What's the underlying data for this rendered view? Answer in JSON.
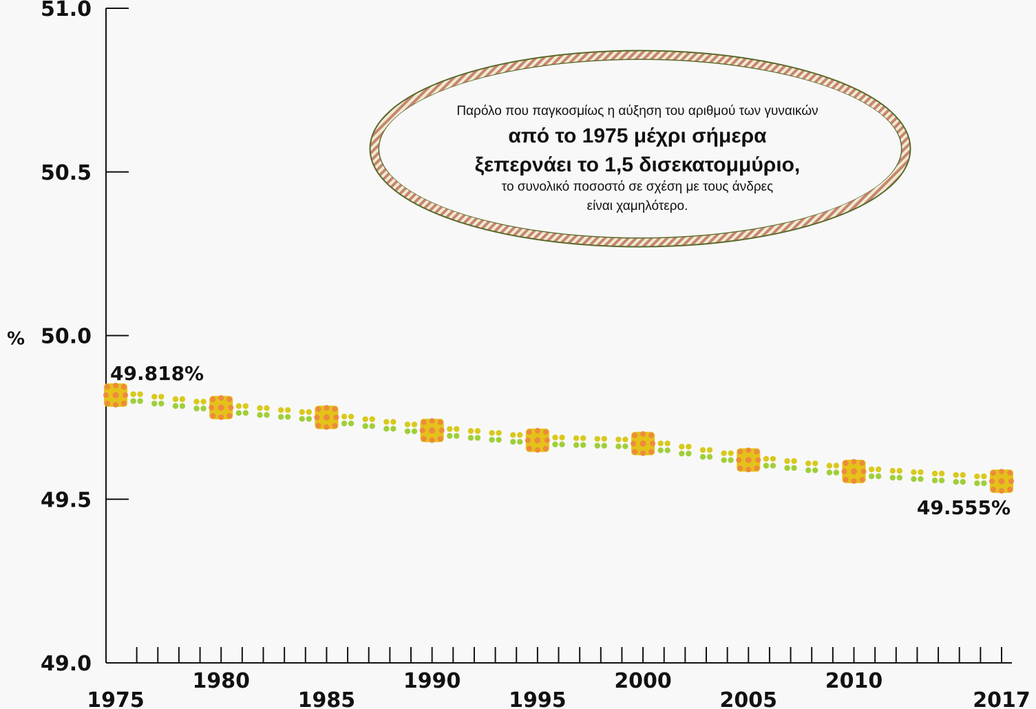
{
  "chart_data": {
    "type": "line",
    "title": "",
    "xlabel": "",
    "ylabel": "%",
    "x": [
      1975,
      1980,
      1985,
      1990,
      1995,
      2000,
      2005,
      2010,
      2017
    ],
    "series": [
      {
        "values": [
          49.818,
          49.78,
          49.75,
          49.71,
          49.68,
          49.67,
          49.62,
          49.585,
          49.555
        ]
      }
    ],
    "ylim": [
      49.0,
      51.0
    ],
    "yticks": [
      "49.0",
      "49.5",
      "50.0",
      "50.5",
      "51.0"
    ],
    "xrange": [
      1975,
      2018
    ],
    "xtick_labels": [
      "1975",
      "1980",
      "1985",
      "1990",
      "1995",
      "2000",
      "2005",
      "2010",
      "2017"
    ],
    "data_labels": {
      "first": "49.818%",
      "last": "49.555%"
    },
    "annotation": {
      "line1": "Παρόλο που παγκοσμίως η αύξηση του αριθμού των γυναικών",
      "line2": "από το 1975 μέχρι σήμερα",
      "line3": "ξεπερνάει το 1,5 δισεκατομμύριο,",
      "line4": "το συνολικό ποσοστό σε σχέση με τους άνδρες",
      "line5": "είναι χαμηλότερο."
    },
    "grid": false,
    "colors": {
      "dot_a": "#d9c91c",
      "dot_b": "#9fcf3a",
      "marker": "#e4c21a",
      "marker_dot": "#ef8a3c",
      "ellipse_outer": "#5a6a2c",
      "ellipse_stripe": "#c7866a"
    }
  }
}
